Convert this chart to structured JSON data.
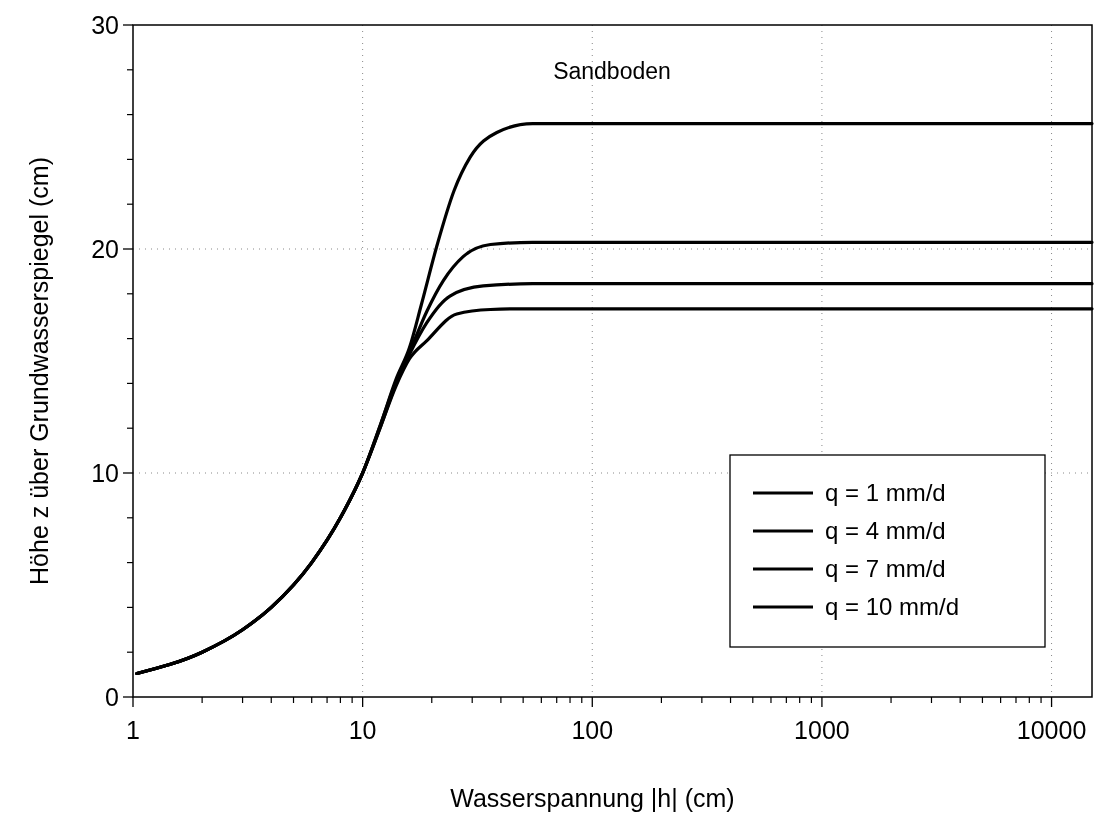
{
  "chart_data": {
    "type": "line",
    "xlabel": "Wasserspannung |h| (cm)",
    "ylabel": "Höhe z über Grundwasserspiegel (cm)",
    "annotations": [
      "Sandboden"
    ],
    "log": "x",
    "grid": true,
    "legend": "bottom right",
    "line_style": "solid",
    "marker": "none",
    "xlim": [
      1,
      15000
    ],
    "xticks": [
      1,
      10,
      100,
      1000,
      10000
    ],
    "ylim": [
      0,
      30
    ],
    "yticks": [
      0,
      10,
      20,
      30
    ],
    "series": [
      {
        "name": "q = 1 mm/d",
        "color": "#000000",
        "x": [
          1.04,
          2,
          3,
          4,
          6,
          8,
          10,
          12,
          14,
          16,
          18,
          21,
          25,
          29.4,
          38.4,
          55,
          100,
          1000,
          15000
        ],
        "values": [
          1.05,
          2,
          3,
          4,
          6,
          8,
          10,
          12.2,
          14.2,
          15.6,
          17.5,
          20.1,
          22.6,
          24.1,
          25.2,
          25.6,
          25.6,
          25.6,
          25.6
        ]
      },
      {
        "name": "q = 4 mm/d",
        "color": "#000000",
        "x": [
          1.04,
          2,
          3,
          4,
          6,
          8,
          10,
          12,
          14,
          16,
          19,
          22.5,
          27.4,
          36,
          55,
          100,
          1000,
          15000
        ],
        "values": [
          1.05,
          2,
          3,
          4,
          6,
          8,
          10,
          12.2,
          14.1,
          15.4,
          17.2,
          18.6,
          19.66,
          20.2,
          20.3,
          20.3,
          20.3,
          20.3
        ]
      },
      {
        "name": "q = 7 mm/d",
        "color": "#000000",
        "x": [
          1.04,
          2,
          3,
          4,
          6,
          8,
          10,
          12,
          14,
          16,
          19,
          24,
          33.5,
          55,
          100,
          1000,
          15000
        ],
        "values": [
          1.05,
          2,
          3,
          4,
          6,
          8,
          10,
          12.1,
          14,
          15.3,
          16.7,
          17.9,
          18.35,
          18.45,
          18.45,
          18.45,
          18.45
        ]
      },
      {
        "name": "q = 10 mm/d",
        "color": "#000000",
        "x": [
          1.04,
          2,
          3,
          4,
          6,
          8,
          10,
          12,
          14,
          16,
          19,
          25.7,
          36,
          50,
          100,
          1000,
          15000
        ],
        "values": [
          1.05,
          2,
          3,
          4,
          6,
          8,
          10,
          12.1,
          13.9,
          15.1,
          15.9,
          17.1,
          17.3,
          17.33,
          17.33,
          17.33,
          17.33
        ]
      }
    ]
  }
}
